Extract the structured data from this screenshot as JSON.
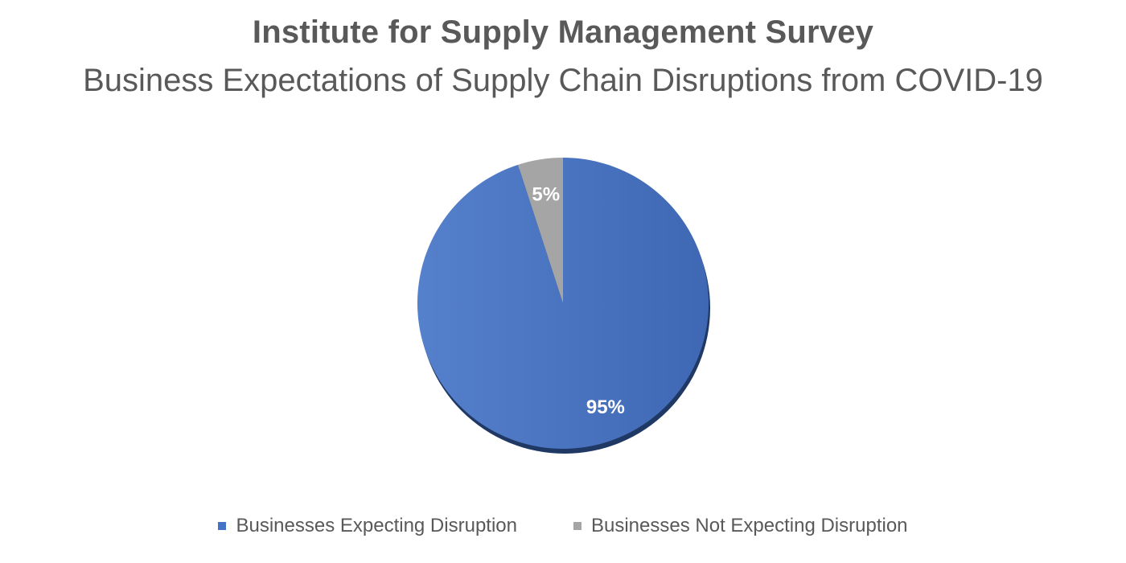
{
  "chart_data": {
    "type": "pie",
    "title": "Institute for Supply Management Survey",
    "subtitle": "Business Expectations of Supply Chain Disruptions from COVID-19",
    "slices": [
      {
        "label": "Businesses Expecting Disruption",
        "value": 95,
        "data_label": "95%",
        "color": "#4472C4"
      },
      {
        "label": "Businesses Not Expecting Disruption",
        "value": 5,
        "data_label": "5%",
        "color": "#A5A5A5"
      }
    ],
    "legend_position": "bottom"
  }
}
